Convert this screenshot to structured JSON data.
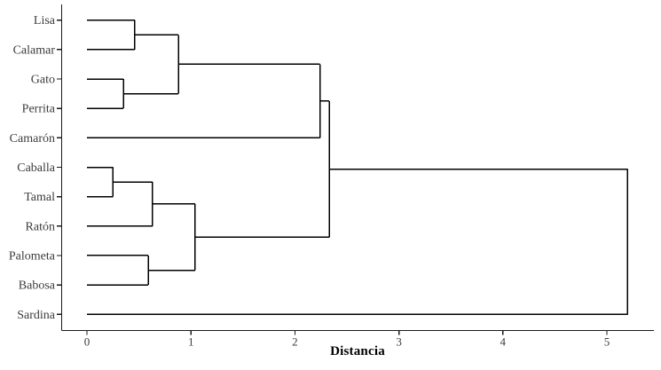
{
  "chart_data": {
    "type": "dendrogram",
    "orientation": "horizontal",
    "title": "",
    "xlabel": "Distancia",
    "xlim": [
      0,
      5.45
    ],
    "x_ticks": [
      0,
      1,
      2,
      3,
      4,
      5
    ],
    "grid": false,
    "leaves_top_to_bottom": [
      "Lisa",
      "Calamar",
      "Gato",
      "Perrita",
      "Camarón",
      "Caballa",
      "Tamal",
      "Ratón",
      "Palometa",
      "Babosa",
      "Sardina"
    ],
    "merges": [
      {
        "joins": [
          "Caballa",
          "Tamal"
        ],
        "distance": 0.25
      },
      {
        "joins": [
          "Gato",
          "Perrita"
        ],
        "distance": 0.35
      },
      {
        "joins": [
          "Lisa",
          "Calamar"
        ],
        "distance": 0.46
      },
      {
        "joins": [
          "Palometa",
          "Babosa"
        ],
        "distance": 0.59
      },
      {
        "joins": [
          "Caballa+Tamal",
          "Ratón"
        ],
        "distance": 0.63
      },
      {
        "joins": [
          "Lisa+Calamar",
          "Gato+Perrita"
        ],
        "distance": 0.88
      },
      {
        "joins": [
          "Caballa+Tamal+Ratón",
          "Palometa+Babosa"
        ],
        "distance": 1.04
      },
      {
        "joins": [
          "Lisa+Calamar+Gato+Perrita",
          "Camarón"
        ],
        "distance": 2.24
      },
      {
        "joins": [
          "Lisa+Calamar+Gato+Perrita+Camarón",
          "Caballa+Tamal+Ratón+Palometa+Babosa"
        ],
        "distance": 2.33
      },
      {
        "joins": [
          "all-others",
          "Sardina"
        ],
        "distance": 5.2
      }
    ],
    "tree": {
      "d": 5.2,
      "children": [
        {
          "d": 2.33,
          "children": [
            {
              "d": 2.24,
              "children": [
                {
                  "d": 0.88,
                  "children": [
                    {
                      "d": 0.46,
                      "children": [
                        {
                          "leaf": "Lisa"
                        },
                        {
                          "leaf": "Calamar"
                        }
                      ]
                    },
                    {
                      "d": 0.35,
                      "children": [
                        {
                          "leaf": "Gato"
                        },
                        {
                          "leaf": "Perrita"
                        }
                      ]
                    }
                  ]
                },
                {
                  "leaf": "Camarón"
                }
              ]
            },
            {
              "d": 1.04,
              "children": [
                {
                  "d": 0.63,
                  "children": [
                    {
                      "d": 0.25,
                      "children": [
                        {
                          "leaf": "Caballa"
                        },
                        {
                          "leaf": "Tamal"
                        }
                      ]
                    },
                    {
                      "leaf": "Ratón"
                    }
                  ]
                },
                {
                  "d": 0.59,
                  "children": [
                    {
                      "leaf": "Palometa"
                    },
                    {
                      "leaf": "Babosa"
                    }
                  ]
                }
              ]
            }
          ]
        },
        {
          "leaf": "Sardina"
        }
      ]
    }
  },
  "colors": {
    "branch_line": "#000000",
    "axis_line": "#1a1a1a",
    "leaf_label": "#3c3c3c",
    "tick_label": "#3c3c3c",
    "xlabel": "#000000",
    "background": "#ffffff"
  }
}
